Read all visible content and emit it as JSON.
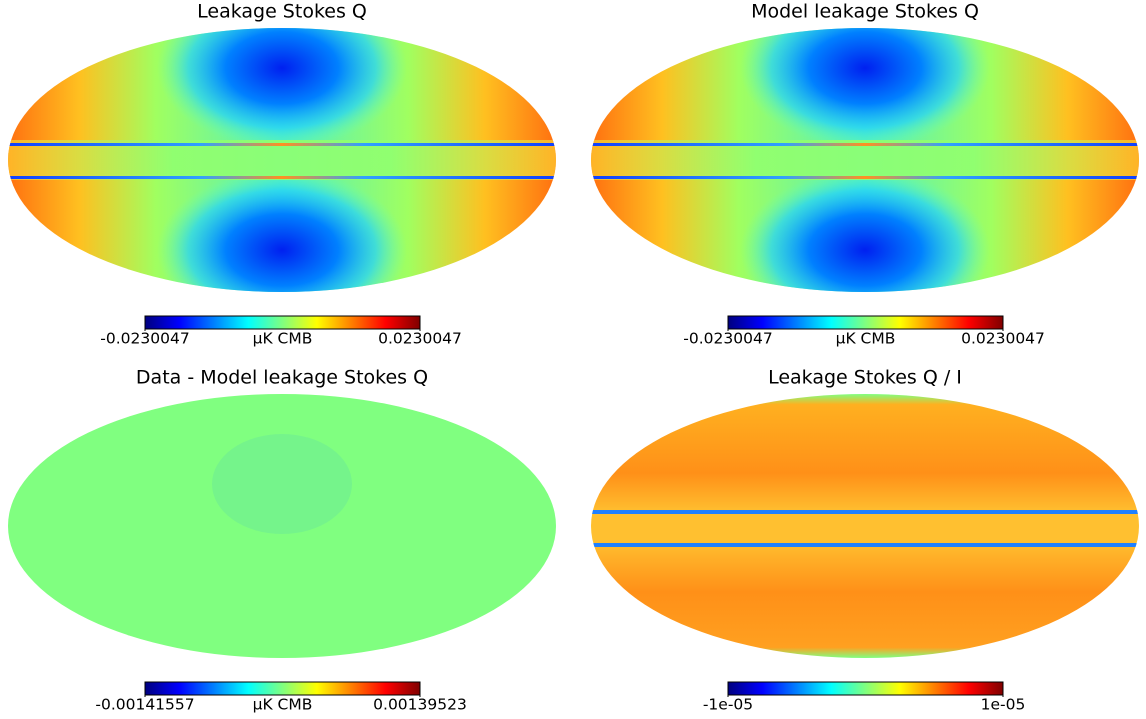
{
  "chart_data": [
    {
      "type": "map",
      "title": "Leakage Stokes Q",
      "unit": "μK CMB",
      "clim": [
        -0.0230047,
        0.0230047
      ],
      "cticks": [
        -0.0230047,
        0.0230047
      ]
    },
    {
      "type": "map",
      "title": "Model leakage Stokes Q",
      "unit": "μK CMB",
      "clim": [
        -0.0230047,
        0.0230047
      ],
      "cticks": [
        -0.0230047,
        0.0230047
      ]
    },
    {
      "type": "map",
      "title": "Data - Model leakage Stokes Q",
      "unit": "μK CMB",
      "clim": [
        -0.00141557,
        0.00139523
      ],
      "cticks": [
        -0.00141557,
        0.00139523
      ]
    },
    {
      "type": "map",
      "title": "Leakage Stokes Q / I",
      "clim": [
        -1e-05,
        1e-05
      ],
      "cticks": [
        {
          "value": -1e-05,
          "label": "-1e-05"
        },
        {
          "value": 1e-05,
          "label": "1e-05"
        }
      ]
    }
  ]
}
